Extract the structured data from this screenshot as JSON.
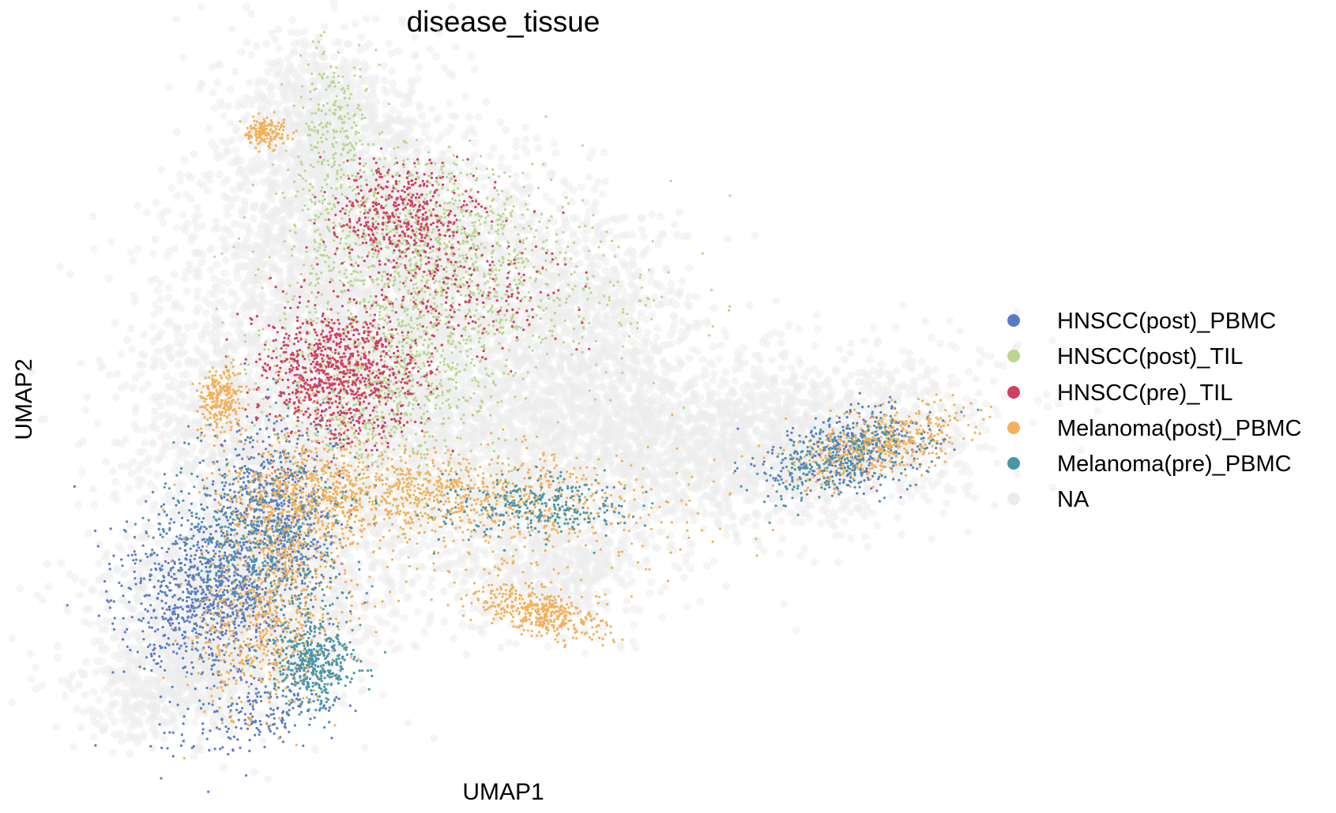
{
  "chart_data": {
    "type": "scatter",
    "title": "disease_tissue",
    "xlabel": "UMAP1",
    "ylabel": "UMAP2",
    "grid": false,
    "axes_visible": false,
    "legend_position": "right",
    "series": [
      {
        "name": "HNSCC(post)_PBMC",
        "color": "#5b7bc4"
      },
      {
        "name": "HNSCC(post)_TIL",
        "color": "#b9d68f"
      },
      {
        "name": "HNSCC(pre)_TIL",
        "color": "#d43d63"
      },
      {
        "name": "Melanoma(post)_PBMC",
        "color": "#f2b15a"
      },
      {
        "name": "Melanoma(pre)_PBMC",
        "color": "#4a96a8"
      },
      {
        "name": "NA",
        "color": "#ececec"
      }
    ]
  }
}
